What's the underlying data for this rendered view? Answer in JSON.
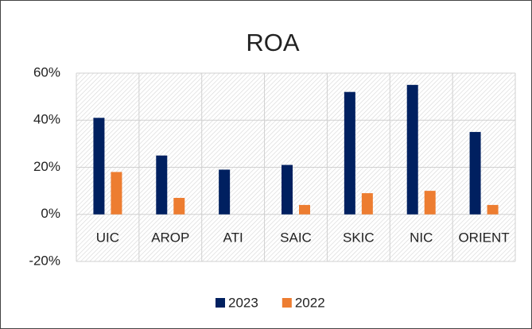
{
  "chart_data": {
    "type": "bar",
    "title": "ROA",
    "categories": [
      "UIC",
      "AROP",
      "ATI",
      "SAIC",
      "SKIC",
      "NIC",
      "ORIENT"
    ],
    "series": [
      {
        "name": "2023",
        "color": "#002060",
        "values": [
          41,
          25,
          19,
          21,
          52,
          55,
          35
        ]
      },
      {
        "name": "2022",
        "color": "#ED7D31",
        "values": [
          18,
          7,
          0,
          4,
          9,
          10,
          4
        ]
      }
    ],
    "ylim": [
      -20,
      60
    ],
    "yticks": [
      {
        "value": -20,
        "label": "-20%"
      },
      {
        "value": 0,
        "label": "0%"
      },
      {
        "value": 20,
        "label": "20%"
      },
      {
        "value": 40,
        "label": "40%"
      },
      {
        "value": 60,
        "label": "60%"
      }
    ],
    "grid": true,
    "legend": "bottom"
  }
}
